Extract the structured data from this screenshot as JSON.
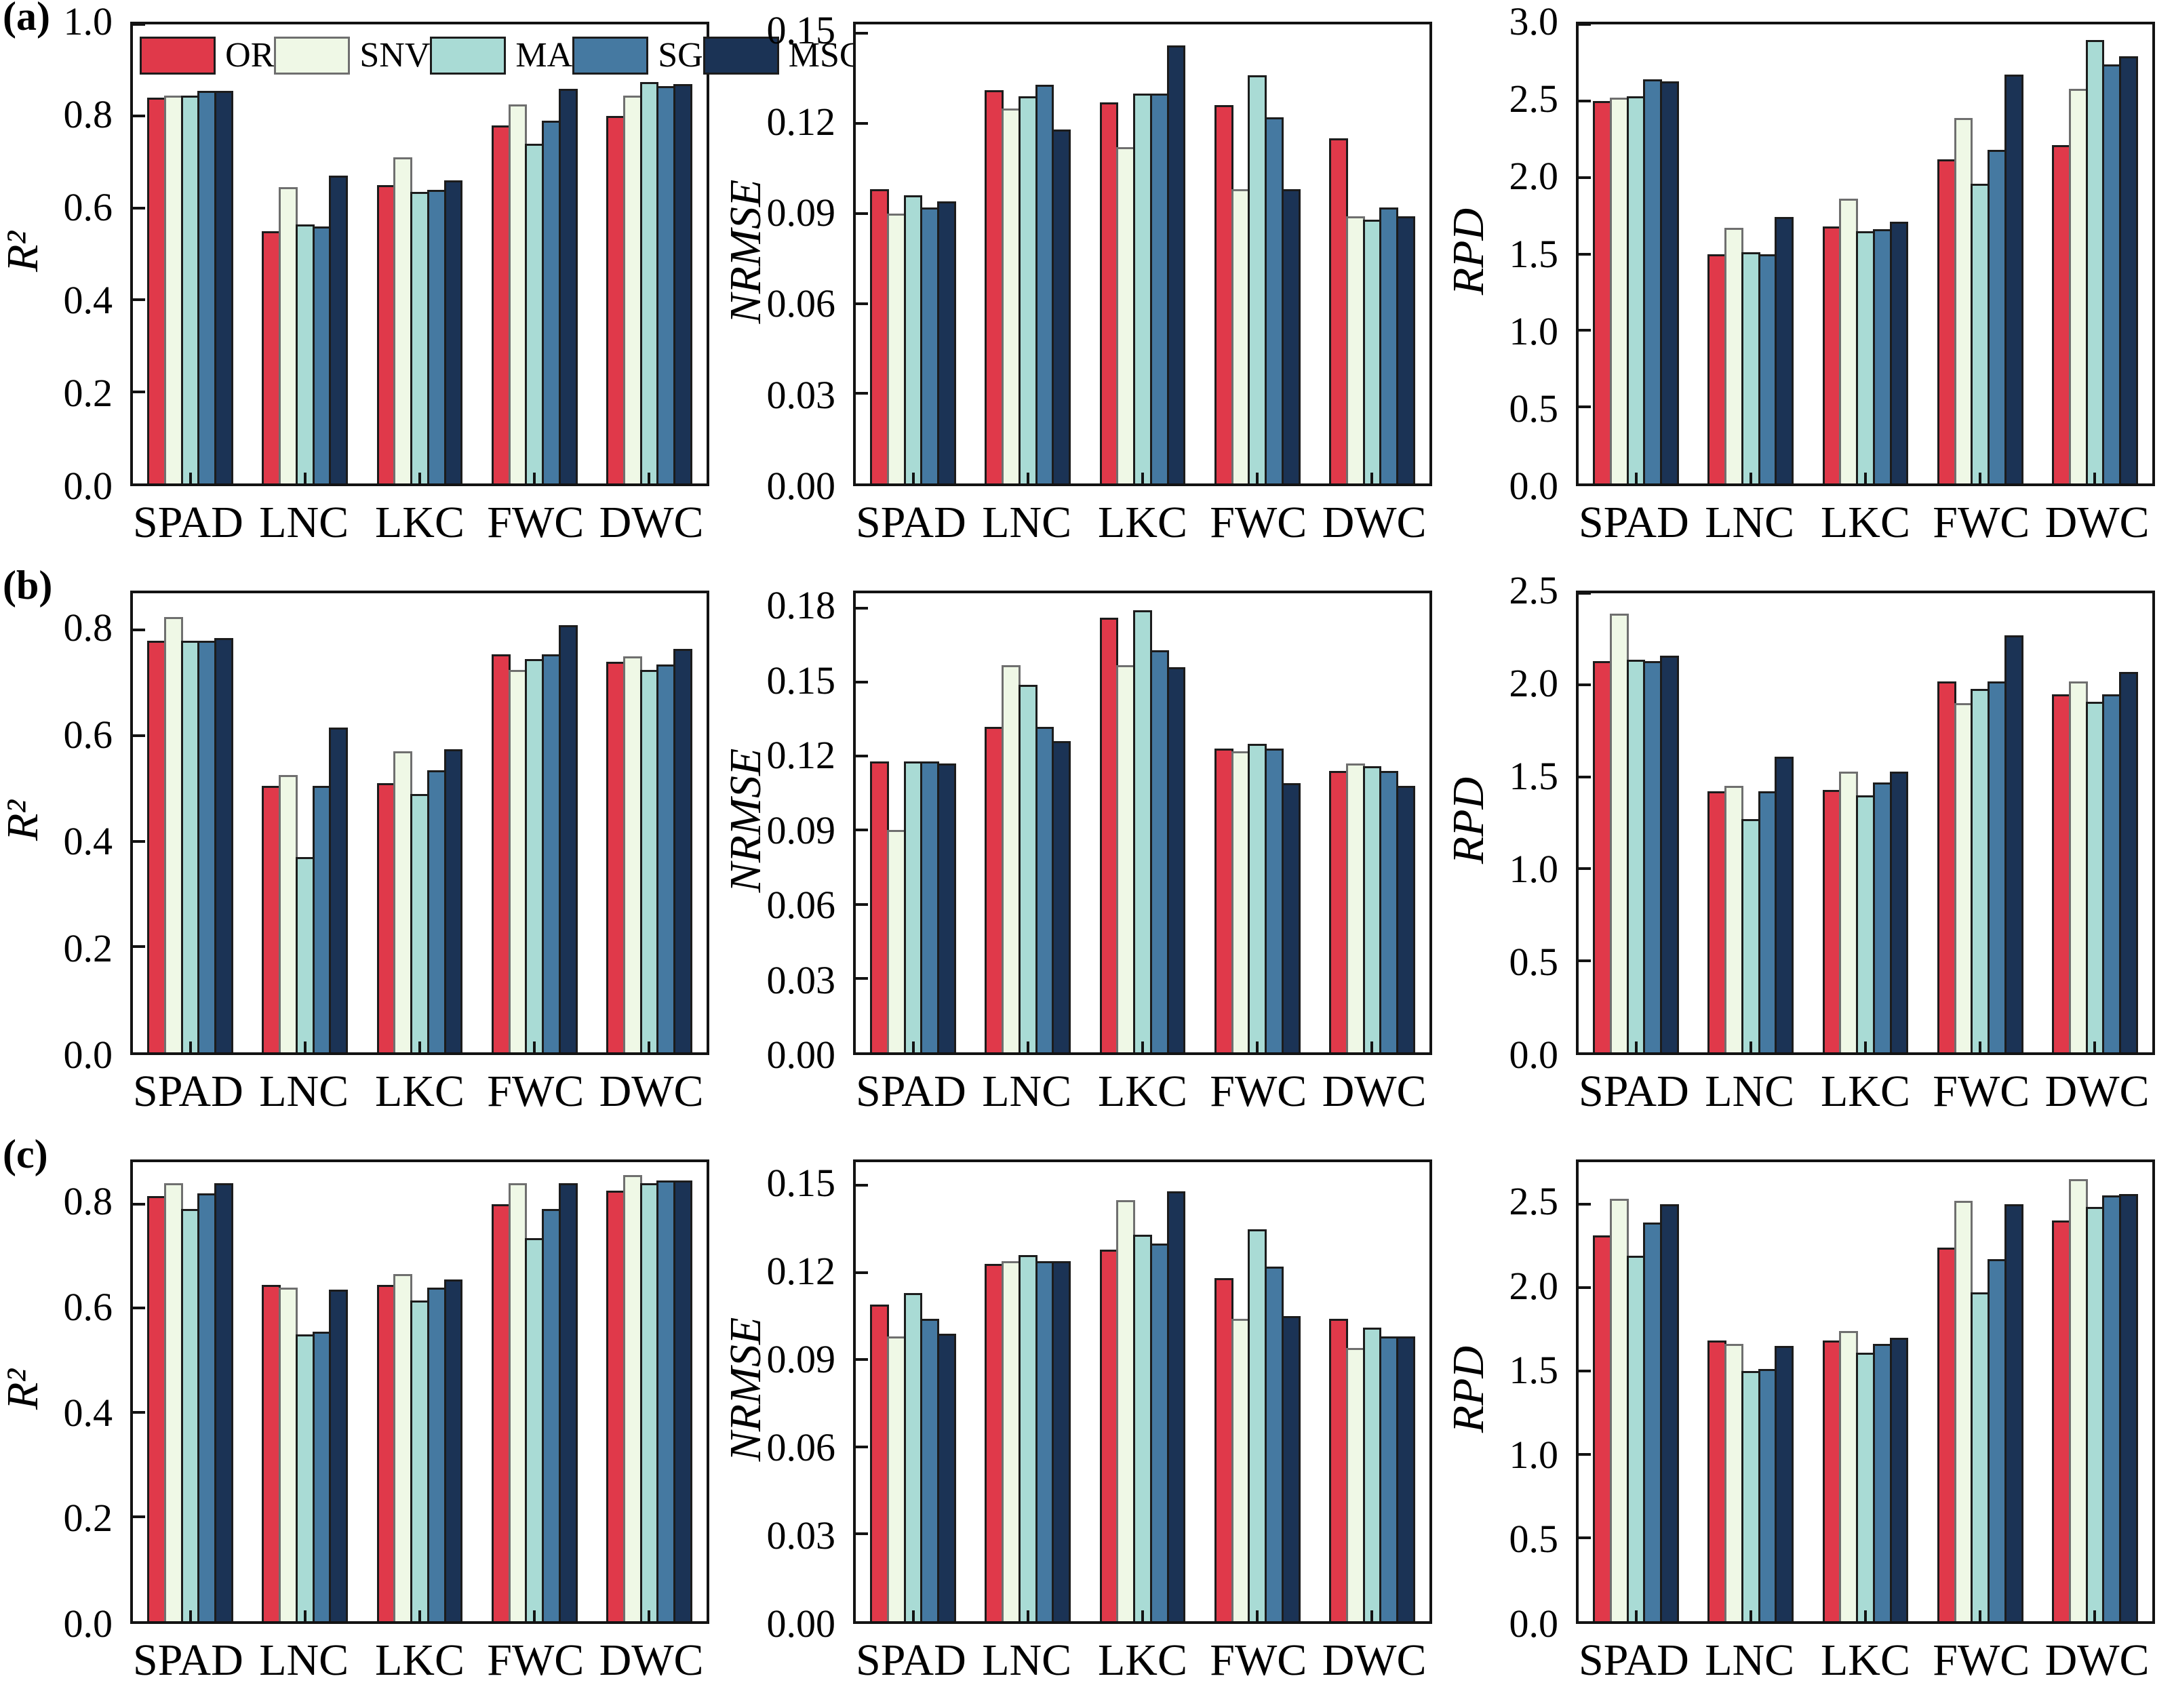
{
  "figure": {
    "panel_labels": [
      "(a)",
      "(b)",
      "(c)"
    ],
    "axis_color": "#131313",
    "background": "#ffffff"
  },
  "legend": {
    "labels": [
      "OR",
      "SNV",
      "MA",
      "SG",
      "MSC"
    ],
    "colors": {
      "OR": "#e0394a",
      "SNV": "#eff8e6",
      "MA": "#a9dbd5",
      "SG": "#4579a1",
      "MSC": "#1b3355"
    },
    "swatch_border": {
      "OR": "#1c1c1c",
      "SNV": "#6f6f6f",
      "MA": "#1c1c1c",
      "SG": "#1c1c1c",
      "MSC": "#1c1c1c"
    }
  },
  "categories": [
    "SPAD",
    "LNC",
    "LKC",
    "FWC",
    "DWC"
  ],
  "chart_data": [
    {
      "type": "bar",
      "name": "a-r2",
      "panel": "(a)",
      "ylabel": "R²",
      "ylim": [
        0,
        1.0
      ],
      "yticks": [
        {
          "v": 0.0,
          "t": "0.0"
        },
        {
          "v": 0.2,
          "t": "0.2"
        },
        {
          "v": 0.4,
          "t": "0.4"
        },
        {
          "v": 0.6,
          "t": "0.6"
        },
        {
          "v": 0.8,
          "t": "0.8"
        },
        {
          "v": 1.0,
          "t": "1.0"
        }
      ],
      "legend": true,
      "series": [
        {
          "name": "OR",
          "values": [
            0.84,
            0.55,
            0.65,
            0.78,
            0.8
          ]
        },
        {
          "name": "SNV",
          "values": [
            0.845,
            0.645,
            0.71,
            0.825,
            0.845
          ]
        },
        {
          "name": "MA",
          "values": [
            0.845,
            0.565,
            0.635,
            0.74,
            0.875
          ]
        },
        {
          "name": "SG",
          "values": [
            0.855,
            0.56,
            0.64,
            0.79,
            0.865
          ]
        },
        {
          "name": "MSC",
          "values": [
            0.855,
            0.67,
            0.66,
            0.86,
            0.87
          ]
        }
      ]
    },
    {
      "type": "bar",
      "name": "a-nrmse",
      "panel": "",
      "ylabel": "NRMSE",
      "ylim": [
        0,
        0.153
      ],
      "yticks": [
        {
          "v": 0.0,
          "t": "0.00"
        },
        {
          "v": 0.03,
          "t": "0.03"
        },
        {
          "v": 0.06,
          "t": "0.06"
        },
        {
          "v": 0.09,
          "t": "0.09"
        },
        {
          "v": 0.12,
          "t": "0.12"
        },
        {
          "v": 0.15,
          "t": "0.15"
        }
      ],
      "legend": false,
      "series": [
        {
          "name": "OR",
          "values": [
            0.098,
            0.131,
            0.127,
            0.126,
            0.115
          ]
        },
        {
          "name": "SNV",
          "values": [
            0.09,
            0.125,
            0.112,
            0.098,
            0.089
          ]
        },
        {
          "name": "MA",
          "values": [
            0.096,
            0.129,
            0.13,
            0.136,
            0.088
          ]
        },
        {
          "name": "SG",
          "values": [
            0.092,
            0.133,
            0.13,
            0.122,
            0.092
          ]
        },
        {
          "name": "MSC",
          "values": [
            0.094,
            0.118,
            0.146,
            0.098,
            0.089
          ]
        }
      ]
    },
    {
      "type": "bar",
      "name": "a-rpd",
      "panel": "",
      "ylabel": "RPD",
      "ylim": [
        0,
        3.0
      ],
      "yticks": [
        {
          "v": 0.0,
          "t": "0.0"
        },
        {
          "v": 0.5,
          "t": "0.5"
        },
        {
          "v": 1.0,
          "t": "1.0"
        },
        {
          "v": 1.5,
          "t": "1.5"
        },
        {
          "v": 2.0,
          "t": "2.0"
        },
        {
          "v": 2.5,
          "t": "2.5"
        },
        {
          "v": 3.0,
          "t": "3.0"
        }
      ],
      "legend": false,
      "series": [
        {
          "name": "OR",
          "values": [
            2.5,
            1.5,
            1.68,
            2.12,
            2.21
          ]
        },
        {
          "name": "SNV",
          "values": [
            2.52,
            1.67,
            1.86,
            2.39,
            2.58
          ]
        },
        {
          "name": "MA",
          "values": [
            2.53,
            1.51,
            1.65,
            1.96,
            2.9
          ]
        },
        {
          "name": "SG",
          "values": [
            2.64,
            1.5,
            1.66,
            2.18,
            2.74
          ]
        },
        {
          "name": "MSC",
          "values": [
            2.63,
            1.74,
            1.71,
            2.67,
            2.79
          ]
        }
      ]
    },
    {
      "type": "bar",
      "name": "b-r2",
      "panel": "(b)",
      "ylabel": "R²",
      "ylim": [
        0,
        0.87
      ],
      "yticks": [
        {
          "v": 0.0,
          "t": "0.0"
        },
        {
          "v": 0.2,
          "t": "0.2"
        },
        {
          "v": 0.4,
          "t": "0.4"
        },
        {
          "v": 0.6,
          "t": "0.6"
        },
        {
          "v": 0.8,
          "t": "0.8"
        }
      ],
      "legend": false,
      "series": [
        {
          "name": "OR",
          "values": [
            0.78,
            0.505,
            0.51,
            0.755,
            0.74
          ]
        },
        {
          "name": "SNV",
          "values": [
            0.825,
            0.525,
            0.57,
            0.725,
            0.75
          ]
        },
        {
          "name": "MA",
          "values": [
            0.78,
            0.37,
            0.49,
            0.745,
            0.725
          ]
        },
        {
          "name": "SG",
          "values": [
            0.78,
            0.505,
            0.535,
            0.755,
            0.735
          ]
        },
        {
          "name": "MSC",
          "values": [
            0.785,
            0.615,
            0.575,
            0.81,
            0.765
          ]
        }
      ]
    },
    {
      "type": "bar",
      "name": "b-nrmse",
      "panel": "",
      "ylabel": "NRMSE",
      "ylim": [
        0,
        0.186
      ],
      "yticks": [
        {
          "v": 0.0,
          "t": "0.00"
        },
        {
          "v": 0.03,
          "t": "0.03"
        },
        {
          "v": 0.06,
          "t": "0.06"
        },
        {
          "v": 0.09,
          "t": "0.09"
        },
        {
          "v": 0.12,
          "t": "0.12"
        },
        {
          "v": 0.15,
          "t": "0.15"
        },
        {
          "v": 0.18,
          "t": "0.18"
        }
      ],
      "legend": false,
      "series": [
        {
          "name": "OR",
          "values": [
            0.118,
            0.132,
            0.176,
            0.123,
            0.114
          ]
        },
        {
          "name": "SNV",
          "values": [
            0.09,
            0.157,
            0.157,
            0.122,
            0.117
          ]
        },
        {
          "name": "MA",
          "values": [
            0.118,
            0.149,
            0.179,
            0.125,
            0.116
          ]
        },
        {
          "name": "SG",
          "values": [
            0.118,
            0.132,
            0.163,
            0.123,
            0.114
          ]
        },
        {
          "name": "MSC",
          "values": [
            0.117,
            0.126,
            0.156,
            0.109,
            0.108
          ]
        }
      ]
    },
    {
      "type": "bar",
      "name": "b-rpd",
      "panel": "",
      "ylabel": "RPD",
      "ylim": [
        0,
        2.5
      ],
      "yticks": [
        {
          "v": 0.0,
          "t": "0.0"
        },
        {
          "v": 0.5,
          "t": "0.5"
        },
        {
          "v": 1.0,
          "t": "1.0"
        },
        {
          "v": 1.5,
          "t": "1.5"
        },
        {
          "v": 2.0,
          "t": "2.0"
        },
        {
          "v": 2.5,
          "t": "2.5"
        }
      ],
      "legend": false,
      "series": [
        {
          "name": "OR",
          "values": [
            2.13,
            1.42,
            1.43,
            2.02,
            1.95
          ]
        },
        {
          "name": "SNV",
          "values": [
            2.39,
            1.45,
            1.53,
            1.9,
            2.02
          ]
        },
        {
          "name": "MA",
          "values": [
            2.14,
            1.27,
            1.4,
            1.98,
            1.91
          ]
        },
        {
          "name": "SG",
          "values": [
            2.13,
            1.42,
            1.47,
            2.02,
            1.95
          ]
        },
        {
          "name": "MSC",
          "values": [
            2.16,
            1.61,
            1.53,
            2.27,
            2.07
          ]
        }
      ]
    },
    {
      "type": "bar",
      "name": "c-r2",
      "panel": "(c)",
      "ylabel": "R²",
      "ylim": [
        0,
        0.88
      ],
      "yticks": [
        {
          "v": 0.0,
          "t": "0.0"
        },
        {
          "v": 0.2,
          "t": "0.2"
        },
        {
          "v": 0.4,
          "t": "0.4"
        },
        {
          "v": 0.6,
          "t": "0.6"
        },
        {
          "v": 0.8,
          "t": "0.8"
        }
      ],
      "legend": false,
      "series": [
        {
          "name": "OR",
          "values": [
            0.815,
            0.645,
            0.645,
            0.8,
            0.825
          ]
        },
        {
          "name": "SNV",
          "values": [
            0.84,
            0.64,
            0.665,
            0.84,
            0.855
          ]
        },
        {
          "name": "MA",
          "values": [
            0.79,
            0.55,
            0.615,
            0.735,
            0.84
          ]
        },
        {
          "name": "SG",
          "values": [
            0.82,
            0.555,
            0.64,
            0.79,
            0.845
          ]
        },
        {
          "name": "MSC",
          "values": [
            0.84,
            0.635,
            0.655,
            0.84,
            0.845
          ]
        }
      ]
    },
    {
      "type": "bar",
      "name": "c-nrmse",
      "panel": "",
      "ylabel": "NRMSE",
      "ylim": [
        0,
        0.158
      ],
      "yticks": [
        {
          "v": 0.0,
          "t": "0.00"
        },
        {
          "v": 0.03,
          "t": "0.03"
        },
        {
          "v": 0.06,
          "t": "0.06"
        },
        {
          "v": 0.09,
          "t": "0.09"
        },
        {
          "v": 0.12,
          "t": "0.12"
        },
        {
          "v": 0.15,
          "t": "0.15"
        }
      ],
      "legend": false,
      "series": [
        {
          "name": "OR",
          "values": [
            0.109,
            0.123,
            0.128,
            0.118,
            0.104
          ]
        },
        {
          "name": "SNV",
          "values": [
            0.098,
            0.124,
            0.145,
            0.104,
            0.094
          ]
        },
        {
          "name": "MA",
          "values": [
            0.113,
            0.126,
            0.133,
            0.135,
            0.101
          ]
        },
        {
          "name": "SG",
          "values": [
            0.104,
            0.124,
            0.13,
            0.122,
            0.098
          ]
        },
        {
          "name": "MSC",
          "values": [
            0.099,
            0.124,
            0.148,
            0.105,
            0.098
          ]
        }
      ]
    },
    {
      "type": "bar",
      "name": "c-rpd",
      "panel": "",
      "ylabel": "RPD",
      "ylim": [
        0,
        2.75
      ],
      "yticks": [
        {
          "v": 0.0,
          "t": "0.0"
        },
        {
          "v": 0.5,
          "t": "0.5"
        },
        {
          "v": 1.0,
          "t": "1.0"
        },
        {
          "v": 1.5,
          "t": "1.5"
        },
        {
          "v": 2.0,
          "t": "2.0"
        },
        {
          "v": 2.5,
          "t": "2.5"
        }
      ],
      "legend": false,
      "series": [
        {
          "name": "OR",
          "values": [
            2.31,
            1.68,
            1.68,
            2.24,
            2.4
          ]
        },
        {
          "name": "SNV",
          "values": [
            2.53,
            1.66,
            1.74,
            2.52,
            2.65
          ]
        },
        {
          "name": "MA",
          "values": [
            2.19,
            1.5,
            1.61,
            1.97,
            2.48
          ]
        },
        {
          "name": "SG",
          "values": [
            2.39,
            1.51,
            1.66,
            2.17,
            2.55
          ]
        },
        {
          "name": "MSC",
          "values": [
            2.5,
            1.65,
            1.7,
            2.5,
            2.56
          ]
        }
      ]
    }
  ]
}
